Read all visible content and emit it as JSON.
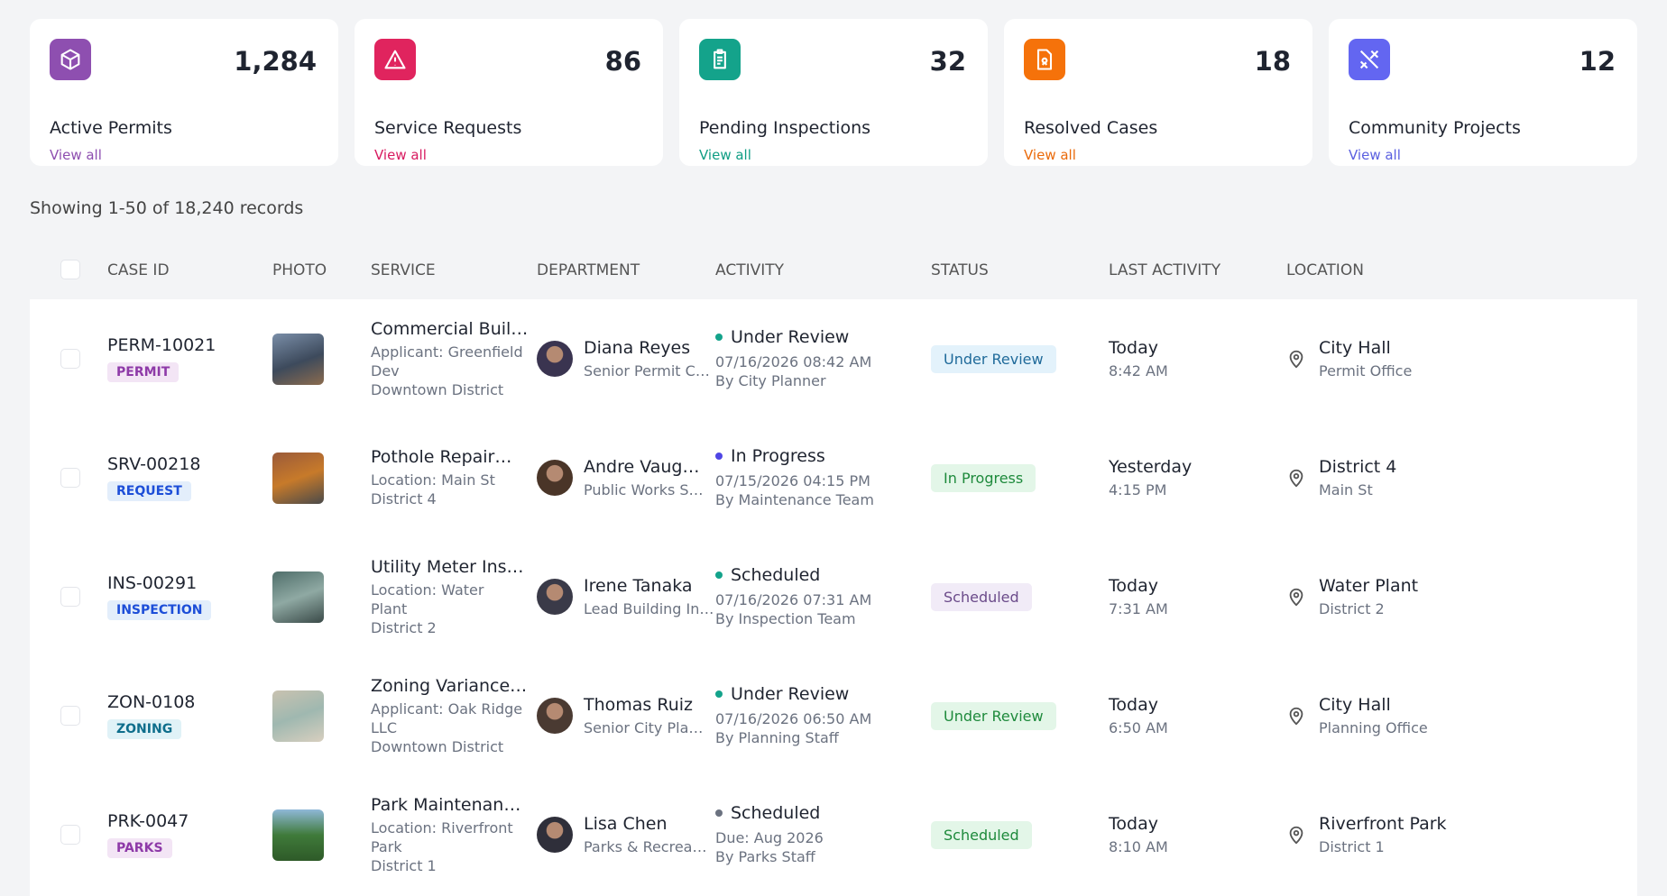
{
  "cards": [
    {
      "value": "1,284",
      "label": "Active Permits",
      "link": "View all"
    },
    {
      "value": "86",
      "label": "Service Requests",
      "link": "View all"
    },
    {
      "value": "32",
      "label": "Pending Inspections",
      "link": "View all"
    },
    {
      "value": "18",
      "label": "Resolved Cases",
      "link": "View all"
    },
    {
      "value": "12",
      "label": "Community Projects",
      "link": "View all"
    }
  ],
  "summary": "Showing 1-50 of 18,240 records",
  "table": {
    "columns": [
      "CASE ID",
      "PHOTO",
      "SERVICE",
      "DEPARTMENT",
      "ACTIVITY",
      "STATUS",
      "LAST ACTIVITY",
      "LOCATION"
    ],
    "rows": [
      {
        "case_id": "PERM-10021",
        "type": "PERMIT",
        "service": "Commercial Buil…",
        "service_details": [
          "Applicant: Greenfield Dev",
          "Downtown District"
        ],
        "staff_name": "Diana Reyes",
        "staff_role": "Senior Permit C…",
        "activity": "Under Review",
        "activity_date": "07/16/2026 08:42 AM",
        "activity_by": "By City Planner",
        "status": "Under Review",
        "last_day": "Today",
        "last_time": "8:42 AM",
        "location": "City Hall",
        "location_detail": "Permit Office"
      },
      {
        "case_id": "SRV-00218",
        "type": "REQUEST",
        "service": "Pothole Repair…",
        "service_details": [
          "Location: Main St",
          "District 4"
        ],
        "staff_name": "Andre Vaug…",
        "staff_role": "Public Works S…",
        "activity": "In Progress",
        "activity_date": "07/15/2026 04:15 PM",
        "activity_by": "By Maintenance Team",
        "status": "In Progress",
        "last_day": "Yesterday",
        "last_time": "4:15 PM",
        "location": "District 4",
        "location_detail": "Main St"
      },
      {
        "case_id": "INS-00291",
        "type": "INSPECTION",
        "service": "Utility Meter Ins…",
        "service_details": [
          "Location: Water Plant",
          "District 2"
        ],
        "staff_name": "Irene Tanaka",
        "staff_role": "Lead Building In…",
        "activity": "Scheduled",
        "activity_date": "07/16/2026 07:31 AM",
        "activity_by": "By Inspection Team",
        "status": "Scheduled",
        "last_day": "Today",
        "last_time": "7:31 AM",
        "location": "Water Plant",
        "location_detail": "District 2"
      },
      {
        "case_id": "ZON-0108",
        "type": "ZONING",
        "service": "Zoning Variance…",
        "service_details": [
          "Applicant: Oak Ridge LLC",
          "Downtown District"
        ],
        "staff_name": "Thomas Ruiz",
        "staff_role": "Senior City Pla…",
        "activity": "Under Review",
        "activity_date": "07/16/2026 06:50 AM",
        "activity_by": "By Planning Staff",
        "status": "Under Review",
        "last_day": "Today",
        "last_time": "6:50 AM",
        "location": "City Hall",
        "location_detail": "Planning Office"
      },
      {
        "case_id": "PRK-0047",
        "type": "PARKS",
        "service": "Park Maintenan…",
        "service_details": [
          "Location: Riverfront Park",
          "District 1"
        ],
        "staff_name": "Lisa Chen",
        "staff_role": "Parks & Recrea…",
        "activity": "Scheduled",
        "activity_date": "Due: Aug 2026",
        "activity_by": "By Parks Staff",
        "status": "Scheduled",
        "last_day": "Today",
        "last_time": "8:10 AM",
        "location": "Riverfront Park",
        "location_detail": "District 1"
      }
    ]
  }
}
